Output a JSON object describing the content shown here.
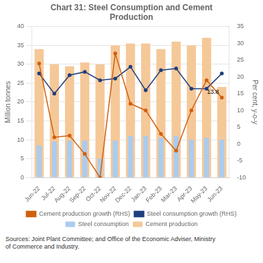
{
  "chart_data": {
    "type": "bar",
    "title": "Chart 31: Steel Consumption and Cement\nProduction",
    "categories": [
      "Jun-22",
      "Jul-22",
      "Aug-22",
      "Sep-22",
      "Oct-22",
      "Nov-22",
      "Dec-22",
      "Jan-23",
      "Feb-23",
      "Mar-23",
      "Apr-23",
      "May-23",
      "Jun-23"
    ],
    "series": [
      {
        "name": "Cement production",
        "type": "bar",
        "color": "#f5c898",
        "values": [
          34.0,
          30.0,
          29.5,
          30.5,
          30.0,
          35.0,
          35.5,
          35.5,
          34.0,
          36.0,
          35.0,
          37.0,
          24.0
        ]
      },
      {
        "name": "Steel consumption",
        "type": "bar",
        "color": "#aaccee",
        "values": [
          8.5,
          9.5,
          9.8,
          9.8,
          5.0,
          9.8,
          11.0,
          11.0,
          10.5,
          11.0,
          10.0,
          10.5,
          10.0
        ]
      },
      {
        "name": "Steel consumption growth (RHS)",
        "type": "line",
        "axis": "y2",
        "color": "#1f3f7f",
        "marker": "circle",
        "values": [
          21.0,
          15.0,
          20.5,
          21.5,
          19.0,
          19.5,
          23.0,
          16.0,
          22.0,
          22.5,
          16.5,
          16.5,
          21.0
        ]
      },
      {
        "name": "Cement production growth (RHS)",
        "type": "line",
        "axis": "y2",
        "color": "#d06010",
        "marker": "circle",
        "values": [
          24.0,
          2.0,
          2.5,
          -3.0,
          -10.0,
          27.0,
          12.0,
          10.0,
          3.0,
          -2.0,
          10.0,
          19.0,
          13.8
        ]
      }
    ],
    "ylim": [
      0,
      40
    ],
    "yticks": [
      0,
      5,
      10,
      15,
      20,
      25,
      30,
      35,
      40
    ],
    "y2lim": [
      -10,
      35
    ],
    "y2ticks": [
      -10,
      -5,
      0,
      5,
      10,
      15,
      20,
      25,
      30,
      35
    ],
    "ylabel": "Million tonnes",
    "y2label": "Per cent, y-o-y",
    "grid": true,
    "legend": "bottom",
    "annotations": [
      {
        "text": "13.8",
        "x": "Jun-23",
        "y": 13.8,
        "axis": "y2"
      }
    ],
    "sources": "Sources: Joint Plant Committee; and Office of the Economic Adviser, Ministry\nof Commerce and Industry."
  }
}
